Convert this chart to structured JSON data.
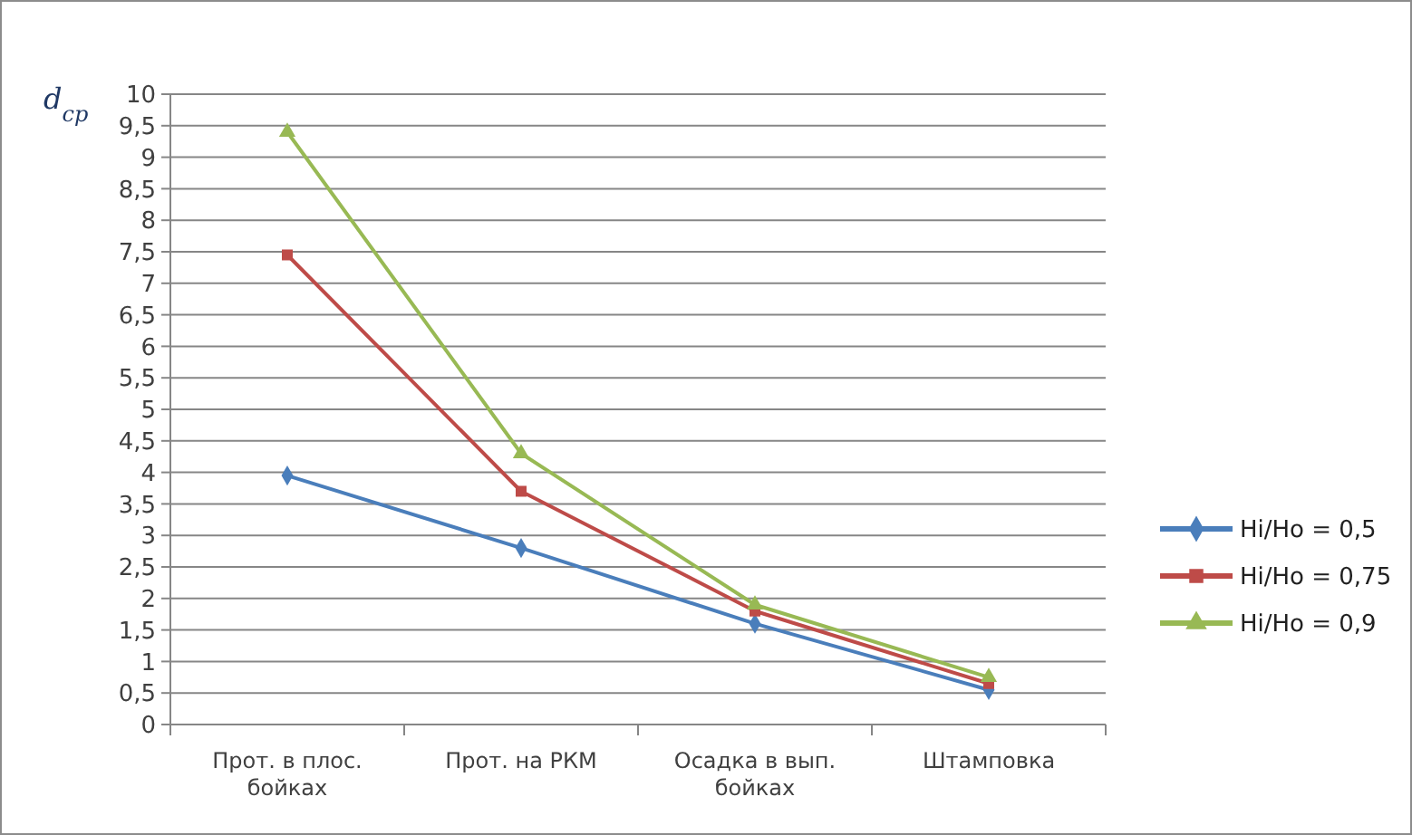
{
  "chart_data": {
    "type": "line",
    "ylabel": "d$_{cp}$",
    "categories": [
      "Прот. в плос. бойках",
      "Прот. на РКМ",
      "Осадка в вып. бойках",
      "Штамповка"
    ],
    "series": [
      {
        "name": "Hi/Ho = 0,5",
        "color": "#4a7ebb",
        "values": [
          3.95,
          2.8,
          1.6,
          0.55
        ],
        "marker": "diamond"
      },
      {
        "name": "Hi/Ho = 0,75",
        "color": "#be4b48",
        "values": [
          7.45,
          3.7,
          1.8,
          0.65
        ],
        "marker": "square"
      },
      {
        "name": "Hi/Ho = 0,9",
        "color": "#98b954",
        "values": [
          9.4,
          4.3,
          1.9,
          0.75
        ],
        "marker": "triangle"
      }
    ],
    "ylim": [
      0,
      10
    ],
    "yticks": [
      0,
      {
        "value": 0.5,
        "label": "0,5"
      },
      1,
      {
        "value": 1.5,
        "label": "1,5"
      },
      2,
      {
        "value": 2.5,
        "label": "2,5"
      },
      3,
      {
        "value": 3.5,
        "label": "3,5"
      },
      4,
      {
        "value": 4.5,
        "label": "4,5"
      },
      5,
      {
        "value": 5.5,
        "label": "5,5"
      },
      6,
      {
        "value": 6.5,
        "label": "6,5"
      },
      7,
      {
        "value": 7.5,
        "label": "7,5"
      },
      8,
      {
        "value": 8.5,
        "label": "8,5"
      },
      9,
      {
        "value": 9.5,
        "label": "9,5"
      },
      10
    ],
    "grid": "y",
    "legend": "right",
    "line_style": "solid"
  }
}
